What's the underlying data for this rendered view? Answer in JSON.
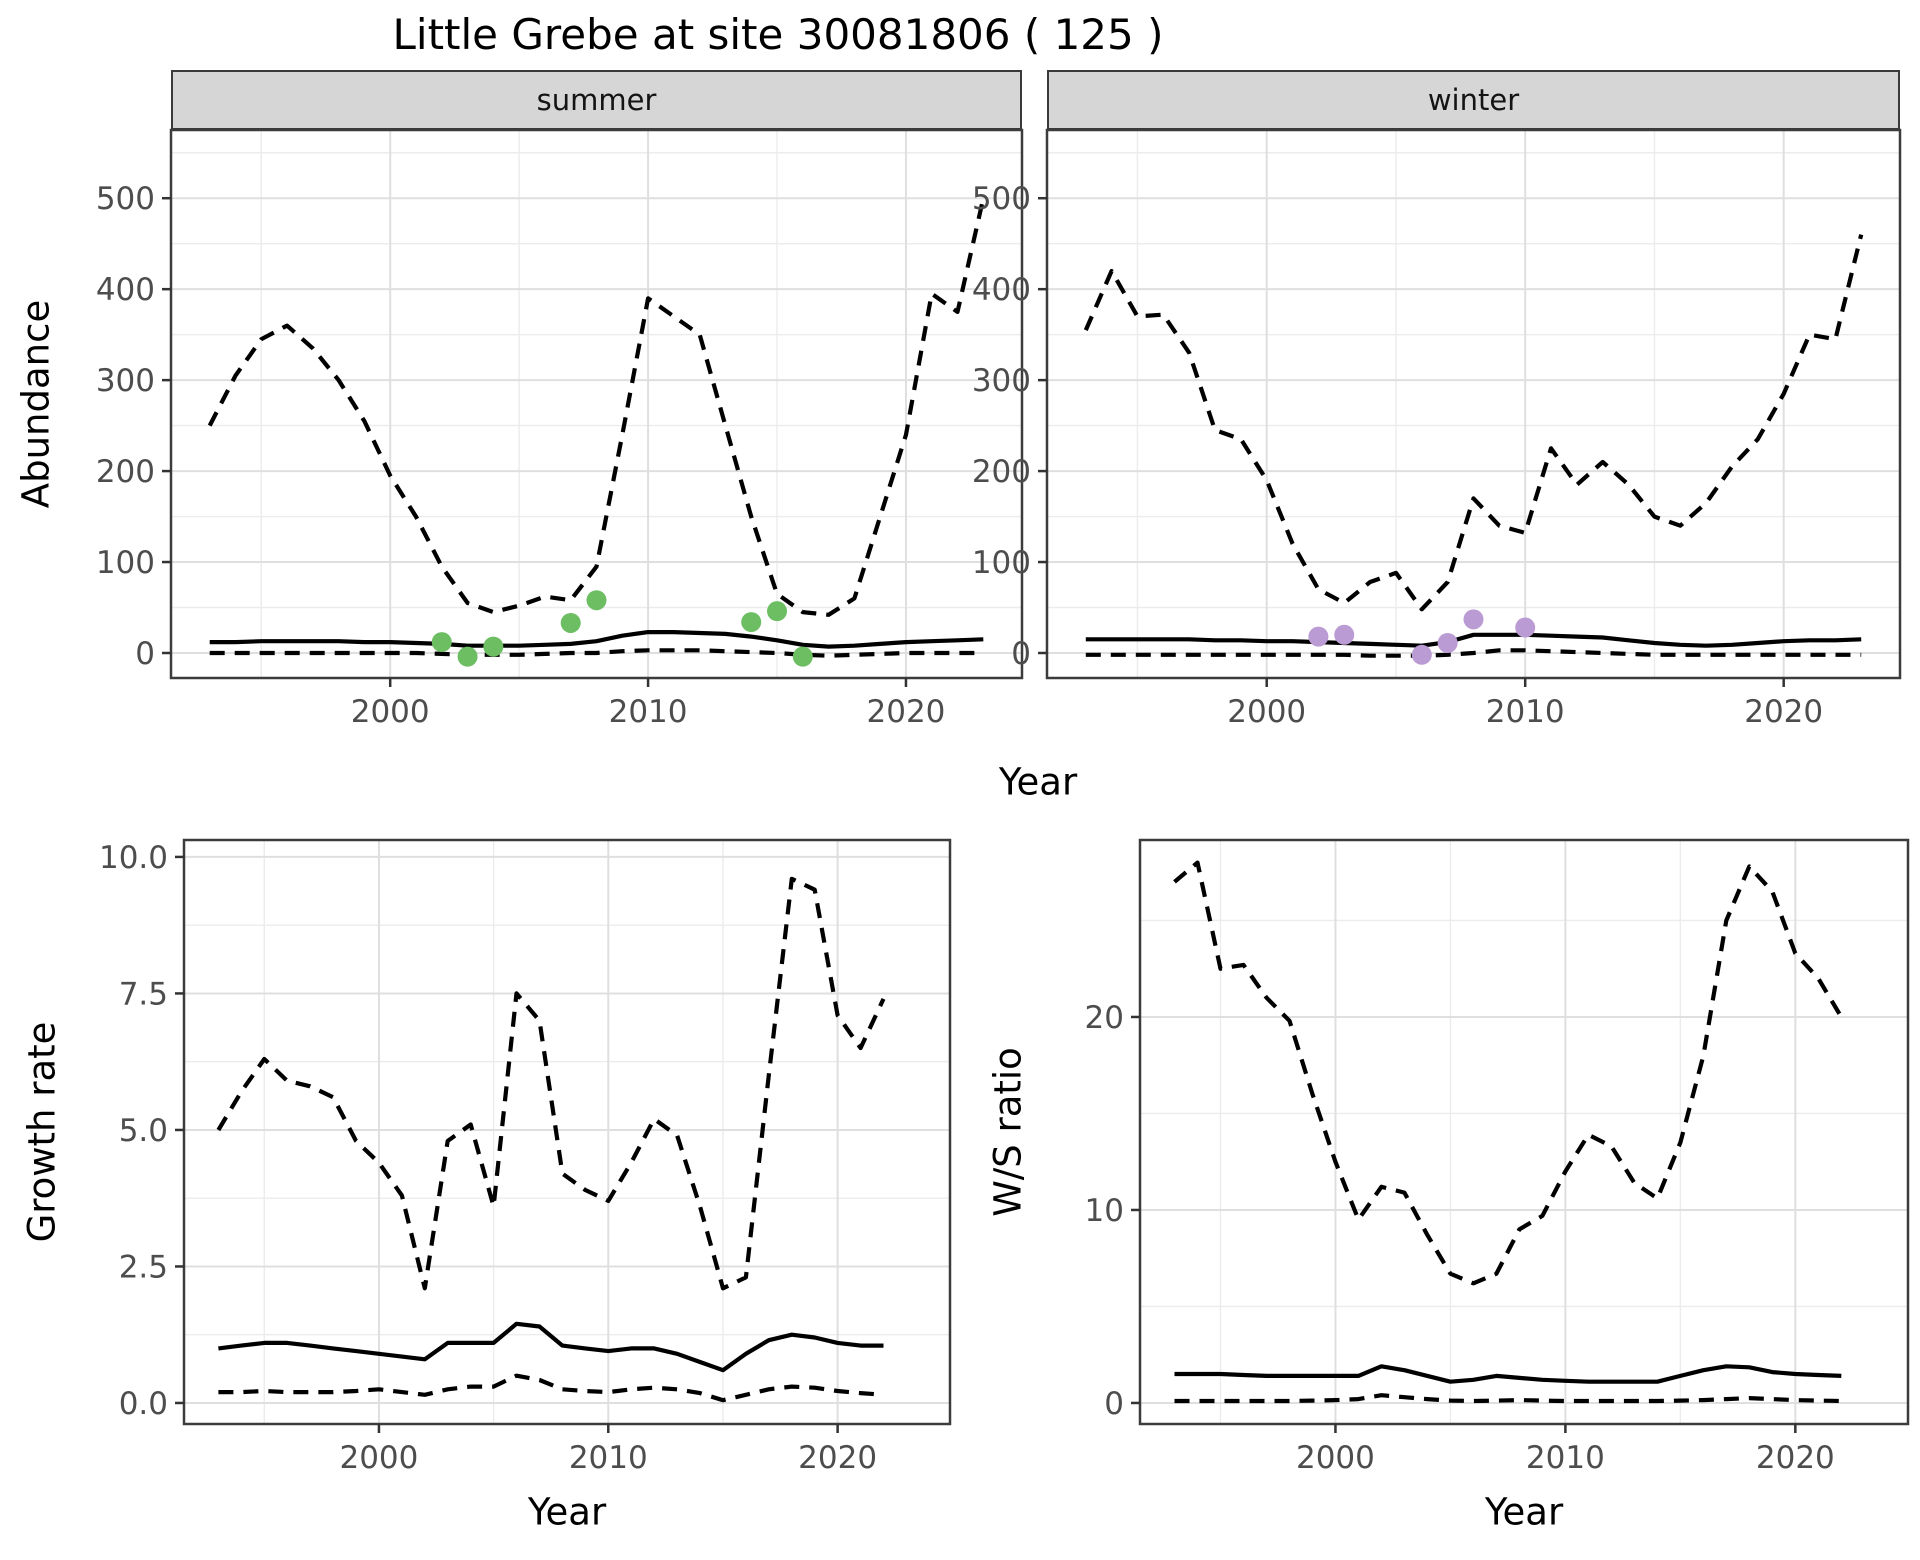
{
  "title": "Little Grebe at site 30081806 ( 125 )",
  "top_row": {
    "facets": [
      {
        "label": "summer"
      },
      {
        "label": "winter"
      }
    ],
    "ylabel": "Abundance",
    "xlabel": "Year"
  },
  "bottom_row": {
    "left": {
      "ylabel": "Growth rate",
      "xlabel": "Year"
    },
    "right": {
      "ylabel": "W/S ratio",
      "xlabel": "Year"
    }
  },
  "colors": {
    "line": "#000000",
    "summer_points": "#6dbe63",
    "winter_points": "#bb9bd3",
    "strip_fill": "#d6d6d6",
    "panel_border": "#3c3c3c",
    "grid_major": "#dfdfdf",
    "grid_minor": "#ececec",
    "tick_text": "#4d4d4d"
  },
  "chart_data": [
    {
      "id": "abundance_summer",
      "type": "line",
      "facet": "summer",
      "ylabel": "Abundance",
      "xlabel": "Year",
      "ylim": [
        0,
        500
      ],
      "xticks": {
        "values": [
          2000,
          2010,
          2020
        ],
        "labels": [
          "2000",
          "2010",
          "2020"
        ]
      },
      "yticks": {
        "values": [
          0,
          100,
          200,
          300,
          400,
          500
        ],
        "labels": [
          "0",
          "100",
          "200",
          "300",
          "400",
          "500"
        ]
      },
      "xminor": [
        1995,
        2005,
        2015
      ],
      "yminor": [
        50,
        150,
        250,
        350,
        450,
        550
      ],
      "years": [
        1993,
        1994,
        1995,
        1996,
        1997,
        1998,
        1999,
        2000,
        2001,
        2002,
        2003,
        2004,
        2005,
        2006,
        2007,
        2008,
        2009,
        2010,
        2011,
        2012,
        2013,
        2014,
        2015,
        2016,
        2017,
        2018,
        2019,
        2020,
        2021,
        2022,
        2023
      ],
      "series": [
        {
          "name": "upper",
          "style": "dashed",
          "values": [
            250,
            305,
            345,
            360,
            335,
            300,
            255,
            195,
            150,
            95,
            55,
            45,
            52,
            62,
            58,
            95,
            240,
            390,
            370,
            350,
            250,
            150,
            65,
            45,
            42,
            60,
            150,
            240,
            395,
            375,
            500
          ]
        },
        {
          "name": "median",
          "style": "solid",
          "values": [
            12,
            12,
            13,
            13,
            13,
            13,
            12,
            12,
            11,
            10,
            8,
            8,
            8,
            9,
            10,
            13,
            19,
            23,
            23,
            22,
            21,
            18,
            14,
            9,
            7,
            8,
            10,
            12,
            13,
            14,
            15
          ]
        },
        {
          "name": "lower",
          "style": "dashed",
          "values": [
            0,
            0,
            0,
            0,
            0,
            0,
            0,
            0,
            0,
            -1,
            -2,
            -2,
            -2,
            -1,
            0,
            0,
            2,
            3,
            3,
            3,
            2,
            1,
            0,
            -2,
            -3,
            -2,
            -1,
            0,
            0,
            0,
            0
          ]
        }
      ],
      "points": {
        "name": "observations",
        "color": "#6dbe63",
        "xy": [
          [
            2002,
            12
          ],
          [
            2003,
            -4
          ],
          [
            2004,
            7
          ],
          [
            2007,
            33
          ],
          [
            2008,
            58
          ],
          [
            2014,
            34
          ],
          [
            2015,
            46
          ],
          [
            2016,
            -4
          ]
        ]
      }
    },
    {
      "id": "abundance_winter",
      "type": "line",
      "facet": "winter",
      "ylabel": "Abundance",
      "xlabel": "Year",
      "ylim": [
        0,
        500
      ],
      "xticks": {
        "values": [
          2000,
          2010,
          2020
        ],
        "labels": [
          "2000",
          "2010",
          "2020"
        ]
      },
      "yticks": {
        "values": [
          0,
          100,
          200,
          300,
          400,
          500
        ],
        "labels": [
          "0",
          "100",
          "200",
          "300",
          "400",
          "500"
        ]
      },
      "xminor": [
        1995,
        2005,
        2015
      ],
      "yminor": [
        50,
        150,
        250,
        350,
        450,
        550
      ],
      "years": [
        1993,
        1994,
        1995,
        1996,
        1997,
        1998,
        1999,
        2000,
        2001,
        2002,
        2003,
        2004,
        2005,
        2006,
        2007,
        2008,
        2009,
        2010,
        2011,
        2012,
        2013,
        2014,
        2015,
        2016,
        2017,
        2018,
        2019,
        2020,
        2021,
        2022,
        2023
      ],
      "series": [
        {
          "name": "upper",
          "style": "dashed",
          "values": [
            355,
            420,
            370,
            372,
            330,
            245,
            235,
            190,
            120,
            70,
            55,
            78,
            88,
            48,
            78,
            170,
            140,
            132,
            225,
            185,
            210,
            185,
            150,
            140,
            165,
            205,
            235,
            285,
            350,
            345,
            460
          ]
        },
        {
          "name": "median",
          "style": "solid",
          "values": [
            15,
            15,
            15,
            15,
            15,
            14,
            14,
            13,
            13,
            12,
            11,
            10,
            9,
            8,
            12,
            20,
            20,
            20,
            19,
            18,
            17,
            14,
            11,
            9,
            8,
            9,
            11,
            13,
            14,
            14,
            15
          ]
        },
        {
          "name": "lower",
          "style": "dashed",
          "values": [
            -2,
            -2,
            -2,
            -2,
            -2,
            -2,
            -2,
            -2,
            -2,
            -2,
            -2,
            -3,
            -3,
            -3,
            -2,
            0,
            3,
            3,
            2,
            1,
            0,
            -1,
            -2,
            -2,
            -2,
            -2,
            -2,
            -2,
            -2,
            -2,
            -2
          ]
        }
      ],
      "points": {
        "name": "observations",
        "color": "#bb9bd3",
        "xy": [
          [
            2002,
            18
          ],
          [
            2003,
            20
          ],
          [
            2006,
            -2
          ],
          [
            2007,
            11
          ],
          [
            2008,
            37
          ],
          [
            2010,
            28
          ]
        ]
      }
    },
    {
      "id": "growth_rate",
      "type": "line",
      "facet": null,
      "ylabel": "Growth rate",
      "xlabel": "Year",
      "ylim": [
        0,
        10
      ],
      "xticks": {
        "values": [
          2000,
          2010,
          2020
        ],
        "labels": [
          "2000",
          "2010",
          "2020"
        ]
      },
      "yticks": {
        "values": [
          0,
          2.5,
          5,
          7.5,
          10
        ],
        "labels": [
          "0.0",
          "2.5",
          "5.0",
          "7.5",
          "10.0"
        ]
      },
      "xminor": [
        1995,
        2005,
        2015
      ],
      "yminor": [
        1.25,
        3.75,
        6.25,
        8.75
      ],
      "years": [
        1993,
        1994,
        1995,
        1996,
        1997,
        1998,
        1999,
        2000,
        2001,
        2002,
        2003,
        2004,
        2005,
        2006,
        2007,
        2008,
        2009,
        2010,
        2011,
        2012,
        2013,
        2014,
        2015,
        2016,
        2017,
        2018,
        2019,
        2020,
        2021,
        2022
      ],
      "series": [
        {
          "name": "upper",
          "style": "dashed",
          "values": [
            5.0,
            5.7,
            6.3,
            5.9,
            5.8,
            5.6,
            4.8,
            4.4,
            3.8,
            2.1,
            4.8,
            5.1,
            3.6,
            7.5,
            7.0,
            4.2,
            3.9,
            3.7,
            4.4,
            5.2,
            4.9,
            3.6,
            2.1,
            2.3,
            6.0,
            9.6,
            9.4,
            7.1,
            6.5,
            7.4
          ]
        },
        {
          "name": "median",
          "style": "solid",
          "values": [
            1.0,
            1.05,
            1.1,
            1.1,
            1.05,
            1.0,
            0.95,
            0.9,
            0.85,
            0.8,
            1.1,
            1.1,
            1.1,
            1.45,
            1.4,
            1.05,
            1.0,
            0.95,
            1.0,
            1.0,
            0.9,
            0.75,
            0.6,
            0.9,
            1.15,
            1.25,
            1.2,
            1.1,
            1.05,
            1.05
          ]
        },
        {
          "name": "lower",
          "style": "dashed",
          "values": [
            0.2,
            0.2,
            0.22,
            0.2,
            0.2,
            0.2,
            0.22,
            0.25,
            0.2,
            0.15,
            0.25,
            0.3,
            0.3,
            0.5,
            0.42,
            0.25,
            0.22,
            0.2,
            0.25,
            0.28,
            0.25,
            0.18,
            0.05,
            0.15,
            0.25,
            0.3,
            0.28,
            0.22,
            0.18,
            0.15
          ]
        }
      ],
      "points": null
    },
    {
      "id": "ws_ratio",
      "type": "line",
      "facet": null,
      "ylabel": "W/S ratio",
      "xlabel": "Year",
      "ylim": [
        0,
        28
      ],
      "xticks": {
        "values": [
          2000,
          2010,
          2020
        ],
        "labels": [
          "2000",
          "2010",
          "2020"
        ]
      },
      "yticks": {
        "values": [
          0,
          10,
          20
        ],
        "labels": [
          "0",
          "10",
          "20"
        ]
      },
      "xminor": [
        1995,
        2005,
        2015
      ],
      "yminor": [
        5,
        15,
        25
      ],
      "years": [
        1993,
        1994,
        1995,
        1996,
        1997,
        1998,
        1999,
        2000,
        2001,
        2002,
        2003,
        2004,
        2005,
        2006,
        2007,
        2008,
        2009,
        2010,
        2011,
        2012,
        2013,
        2014,
        2015,
        2016,
        2017,
        2018,
        2019,
        2020,
        2021,
        2022
      ],
      "series": [
        {
          "name": "upper",
          "style": "dashed",
          "values": [
            27,
            28,
            22.5,
            22.7,
            21,
            19.8,
            16,
            12.5,
            9.5,
            11.2,
            10.9,
            8.7,
            6.7,
            6.2,
            6.7,
            9.0,
            9.7,
            12.0,
            13.9,
            13.3,
            11.4,
            10.6,
            13.5,
            18,
            25,
            27.8,
            26.5,
            23.3,
            22,
            20
          ]
        },
        {
          "name": "median",
          "style": "solid",
          "values": [
            1.5,
            1.5,
            1.5,
            1.45,
            1.4,
            1.4,
            1.4,
            1.4,
            1.4,
            1.9,
            1.7,
            1.4,
            1.1,
            1.2,
            1.4,
            1.3,
            1.2,
            1.15,
            1.1,
            1.1,
            1.1,
            1.1,
            1.4,
            1.7,
            1.9,
            1.85,
            1.6,
            1.5,
            1.45,
            1.4
          ]
        },
        {
          "name": "lower",
          "style": "dashed",
          "values": [
            0.1,
            0.1,
            0.1,
            0.1,
            0.1,
            0.1,
            0.12,
            0.15,
            0.2,
            0.4,
            0.3,
            0.2,
            0.12,
            0.1,
            0.12,
            0.15,
            0.12,
            0.1,
            0.1,
            0.1,
            0.1,
            0.1,
            0.12,
            0.15,
            0.2,
            0.25,
            0.2,
            0.15,
            0.12,
            0.1
          ]
        }
      ],
      "points": null
    }
  ]
}
